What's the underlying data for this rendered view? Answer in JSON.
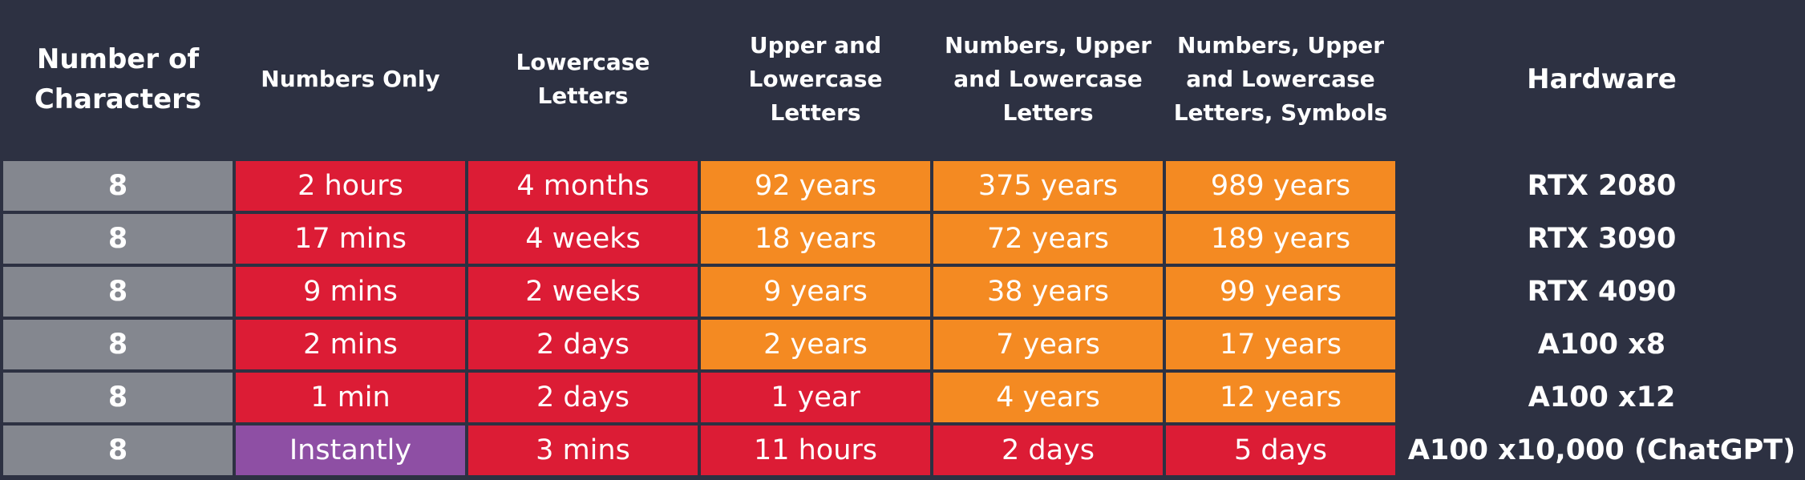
{
  "header": [
    "Number of Characters",
    "Numbers Only",
    "Lowercase Letters",
    "Upper and Lowercase Letters",
    "Numbers, Upper and Lowercase Letters",
    "Numbers, Upper and Lowercase Letters, Symbols",
    "Hardware"
  ],
  "palette": {
    "gray": "#84878f",
    "red": "#dc1c35",
    "orange": "#f48a22",
    "purple": "#8e4fa4",
    "background": "#2d3142"
  },
  "rows": [
    {
      "characters": "8",
      "times": [
        "2 hours",
        "4 months",
        "92 years",
        "375 years",
        "989 years"
      ],
      "colors": [
        "red",
        "red",
        "orange",
        "orange",
        "orange"
      ],
      "hardware": "RTX 2080"
    },
    {
      "characters": "8",
      "times": [
        "17 mins",
        "4 weeks",
        "18 years",
        "72 years",
        "189 years"
      ],
      "colors": [
        "red",
        "red",
        "orange",
        "orange",
        "orange"
      ],
      "hardware": "RTX 3090"
    },
    {
      "characters": "8",
      "times": [
        "9 mins",
        "2 weeks",
        "9 years",
        "38 years",
        "99 years"
      ],
      "colors": [
        "red",
        "red",
        "orange",
        "orange",
        "orange"
      ],
      "hardware": "RTX 4090"
    },
    {
      "characters": "8",
      "times": [
        "2 mins",
        "2 days",
        "2 years",
        "7 years",
        "17 years"
      ],
      "colors": [
        "red",
        "red",
        "orange",
        "orange",
        "orange"
      ],
      "hardware": "A100 x8"
    },
    {
      "characters": "8",
      "times": [
        "1 min",
        "2 days",
        "1 year",
        "4 years",
        "12 years"
      ],
      "colors": [
        "red",
        "red",
        "red",
        "orange",
        "orange"
      ],
      "hardware": "A100 x12"
    },
    {
      "characters": "8",
      "times": [
        "Instantly",
        "3 mins",
        "11 hours",
        "2 days",
        "5 days"
      ],
      "colors": [
        "purple",
        "red",
        "red",
        "red",
        "red"
      ],
      "hardware": "A100 x10,000 (ChatGPT)"
    }
  ]
}
